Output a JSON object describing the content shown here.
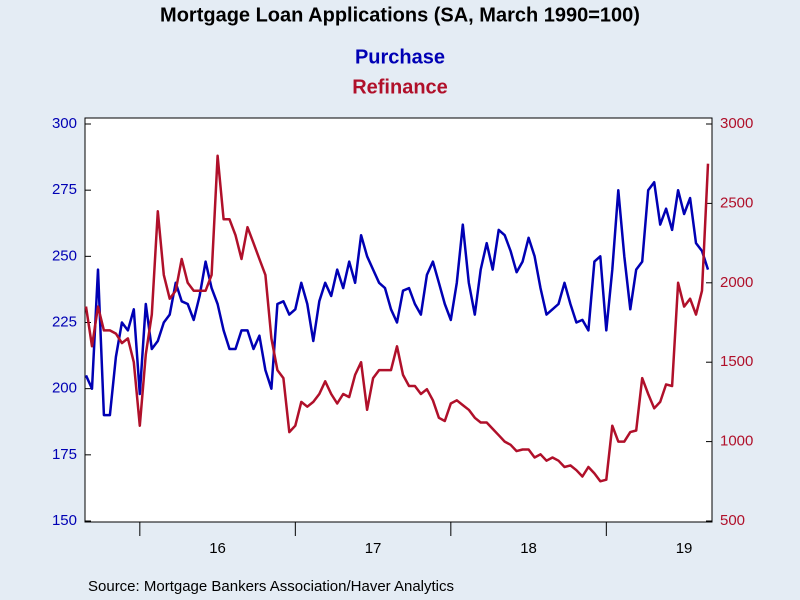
{
  "chart_data": {
    "type": "line",
    "title": "Mortgage Loan Applications (SA, March 1990=100)",
    "source": "Source:  Mortgage Bankers Association/Haver Analytics",
    "categories": [
      null,
      null,
      null,
      null,
      null,
      null,
      null,
      null,
      null,
      null,
      null,
      null,
      null,
      null,
      null,
      null,
      null,
      null,
      null,
      null,
      null,
      null,
      "16",
      null,
      null,
      null,
      null,
      null,
      null,
      null,
      null,
      null,
      null,
      null,
      null,
      null,
      null,
      null,
      null,
      null,
      null,
      null,
      null,
      null,
      null,
      null,
      null,
      null,
      "17",
      null,
      null,
      null,
      null,
      null,
      null,
      null,
      null,
      null,
      null,
      null,
      null,
      null,
      null,
      null,
      null,
      null,
      null,
      null,
      null,
      null,
      null,
      null,
      null,
      null,
      "18",
      null,
      null,
      null,
      null,
      null,
      null,
      null,
      null,
      null,
      null,
      null,
      null,
      null,
      null,
      null,
      null,
      null,
      null,
      null,
      null,
      null,
      null,
      null,
      null,
      null,
      "19",
      null,
      null,
      null,
      null
    ],
    "series": [
      {
        "name": "Purchase",
        "color": "#0000b4",
        "axis": "y",
        "values": [
          205,
          200,
          245,
          190,
          190,
          212,
          225,
          222,
          230,
          198,
          232,
          215,
          218,
          225,
          228,
          240,
          233,
          232,
          226,
          235,
          248,
          238,
          232,
          222,
          215,
          215,
          222,
          222,
          215,
          220,
          207,
          200,
          232,
          233,
          228,
          230,
          240,
          232,
          218,
          233,
          240,
          235,
          245,
          238,
          248,
          240,
          258,
          250,
          245,
          240,
          238,
          230,
          225,
          237,
          238,
          232,
          228,
          243,
          248,
          240,
          232,
          226,
          240,
          262,
          240,
          228,
          245,
          255,
          245,
          260,
          258,
          252,
          244,
          248,
          257,
          250,
          238,
          228,
          230,
          232,
          240,
          232,
          225,
          226,
          222,
          248,
          250,
          222,
          245,
          275,
          250,
          230,
          245,
          248,
          275,
          278,
          262,
          268,
          260,
          275,
          266,
          272,
          255,
          252,
          245
        ]
      },
      {
        "name": "Refinance",
        "color": "#b0102a",
        "axis": "y2",
        "values": [
          1850,
          1600,
          1850,
          1700,
          1700,
          1680,
          1620,
          1650,
          1500,
          1100,
          1550,
          1800,
          2450,
          2050,
          1900,
          1950,
          2150,
          2000,
          1950,
          1950,
          1950,
          2050,
          2800,
          2400,
          2400,
          2300,
          2150,
          2350,
          2250,
          2150,
          2050,
          1650,
          1450,
          1400,
          1060,
          1100,
          1250,
          1220,
          1250,
          1300,
          1380,
          1300,
          1240,
          1300,
          1280,
          1420,
          1500,
          1200,
          1400,
          1450,
          1450,
          1450,
          1600,
          1420,
          1350,
          1350,
          1300,
          1330,
          1260,
          1150,
          1130,
          1240,
          1260,
          1230,
          1200,
          1150,
          1120,
          1120,
          1080,
          1040,
          1000,
          980,
          940,
          950,
          950,
          900,
          920,
          880,
          900,
          880,
          840,
          850,
          820,
          780,
          840,
          800,
          750,
          760,
          1100,
          1000,
          1000,
          1060,
          1070,
          1400,
          1300,
          1210,
          1250,
          1360,
          1350,
          2000,
          1850,
          1900,
          1800,
          1950,
          2750
        ]
      }
    ],
    "ylim": [
      150,
      300
    ],
    "yticks": [
      150,
      175,
      200,
      225,
      250,
      275,
      300
    ],
    "y2lim": [
      500,
      3000
    ],
    "y2ticks": [
      500,
      1000,
      1500,
      2000,
      2500,
      3000
    ]
  }
}
